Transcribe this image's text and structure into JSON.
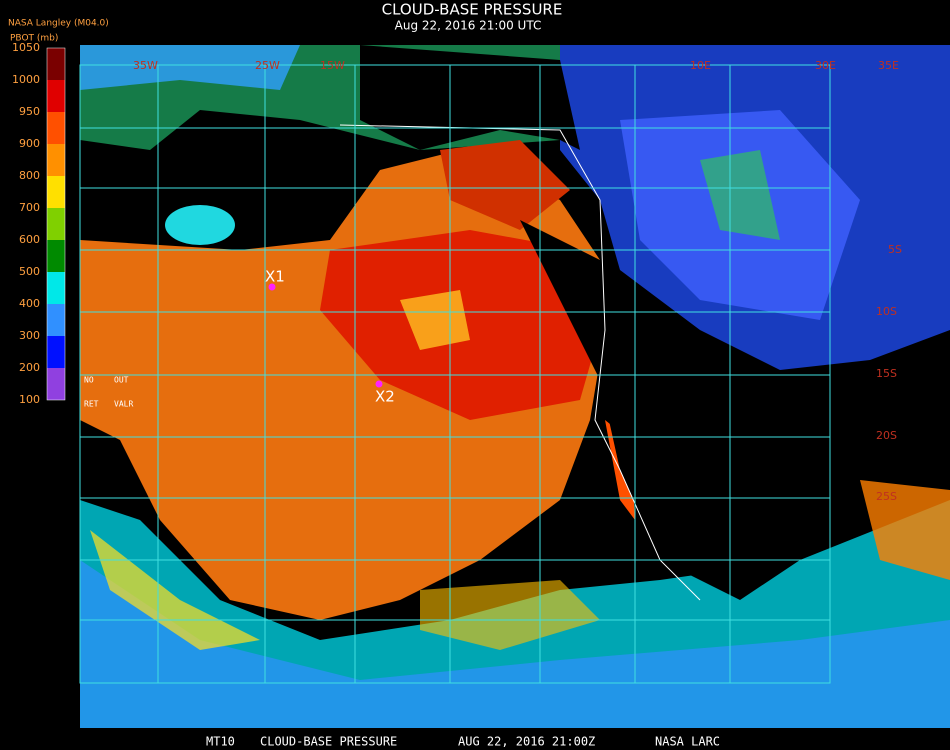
{
  "header": {
    "title": "CLOUD-BASE PRESSURE",
    "subtitle": "Aug 22, 2016 21:00 UTC",
    "source": "NASA Langley (M04.0)"
  },
  "legend": {
    "title": "PBOT (mb)",
    "ticks": [
      1050,
      1000,
      950,
      900,
      800,
      700,
      600,
      500,
      400,
      300,
      200,
      100
    ],
    "colors": [
      "#7a0000",
      "#e00000",
      "#ff5000",
      "#ff9000",
      "#ffe000",
      "#80d000",
      "#008a00",
      "#00e8e8",
      "#3090ff",
      "#0010ff",
      "#9040e0"
    ],
    "notes": [
      "NO",
      "OUT",
      "RET",
      "VALR"
    ]
  },
  "markers": [
    {
      "label": "X1"
    },
    {
      "label": "X2"
    }
  ],
  "lat_labels": [
    "5S",
    "10S",
    "15S",
    "20S",
    "25S"
  ],
  "lon_labels": [
    "35W",
    "25W",
    "15W",
    "10E",
    "30E",
    "35E"
  ],
  "footer": {
    "product": "MT10",
    "name": "CLOUD-BASE PRESSURE",
    "time": "AUG 22, 2016 21:00Z",
    "credit": "NASA LARC"
  }
}
